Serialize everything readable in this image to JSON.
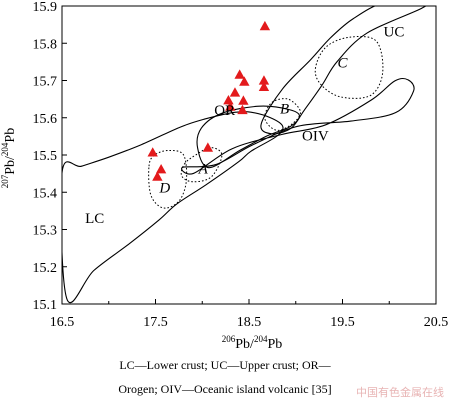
{
  "chart_data": {
    "type": "scatter",
    "xlim": [
      16.5,
      20.5
    ],
    "ylim": [
      15.1,
      15.9
    ],
    "xticks": [
      "16.5",
      "17.5",
      "18.5",
      "19.5",
      "20.5"
    ],
    "yticks": [
      "15.1",
      "15.2",
      "15.3",
      "15.4",
      "15.5",
      "15.6",
      "15.7",
      "15.8",
      "15.9"
    ],
    "xlabel": {
      "pre": "206",
      "base": "Pb/",
      "pre2": "204",
      "base2": "Pb"
    },
    "ylabel": {
      "pre": "207",
      "base": "Pb/",
      "pre2": "204",
      "base2": "Pb"
    },
    "grid": false,
    "marker_color": "#e31a1c",
    "points": [
      {
        "x": 18.67,
        "y": 15.846
      },
      {
        "x": 18.4,
        "y": 15.716
      },
      {
        "x": 18.45,
        "y": 15.697
      },
      {
        "x": 18.66,
        "y": 15.7
      },
      {
        "x": 18.66,
        "y": 15.683
      },
      {
        "x": 18.35,
        "y": 15.668
      },
      {
        "x": 18.28,
        "y": 15.647
      },
      {
        "x": 18.44,
        "y": 15.646
      },
      {
        "x": 18.3,
        "y": 15.63
      },
      {
        "x": 18.43,
        "y": 15.621
      },
      {
        "x": 18.06,
        "y": 15.52
      },
      {
        "x": 17.47,
        "y": 15.507
      },
      {
        "x": 17.56,
        "y": 15.462
      },
      {
        "x": 17.52,
        "y": 15.442
      }
    ],
    "field_labels": [
      {
        "text": "UC",
        "x": 20.05,
        "y": 15.818,
        "italic": false
      },
      {
        "text": "C",
        "x": 19.5,
        "y": 15.735,
        "italic": true
      },
      {
        "text": "OR",
        "x": 18.24,
        "y": 15.607,
        "italic": false
      },
      {
        "text": "B",
        "x": 18.88,
        "y": 15.612,
        "italic": true
      },
      {
        "text": "OIV",
        "x": 19.21,
        "y": 15.539,
        "italic": false
      },
      {
        "text": "A",
        "x": 18.01,
        "y": 15.45,
        "italic": true
      },
      {
        "text": "D",
        "x": 17.6,
        "y": 15.4,
        "italic": true
      },
      {
        "text": "LC",
        "x": 16.85,
        "y": 15.317,
        "italic": false
      }
    ],
    "fields": {
      "LC": [
        [
          16.5,
          15.452
        ],
        [
          16.71,
          15.47
        ],
        [
          17.0,
          15.494
        ],
        [
          17.35,
          15.528
        ],
        [
          17.7,
          15.568
        ],
        [
          17.85,
          15.583
        ],
        [
          18.02,
          15.596
        ],
        [
          18.21,
          15.608
        ],
        [
          18.36,
          15.615
        ],
        [
          18.52,
          15.615
        ],
        [
          18.73,
          15.6
        ],
        [
          18.86,
          15.577
        ],
        [
          18.8,
          15.551
        ],
        [
          18.52,
          15.51
        ],
        [
          18.39,
          15.482
        ],
        [
          18.04,
          15.42
        ],
        [
          17.73,
          15.369
        ],
        [
          17.54,
          15.326
        ],
        [
          17.21,
          15.26
        ],
        [
          16.84,
          15.19
        ],
        [
          16.55,
          15.115
        ]
      ],
      "UC": [
        [
          18.63,
          15.583
        ],
        [
          18.86,
          15.678
        ],
        [
          19.16,
          15.756
        ],
        [
          19.37,
          15.814
        ],
        [
          19.61,
          15.865
        ],
        [
          19.95,
          15.909
        ],
        [
          20.34,
          15.904
        ],
        [
          20.34,
          15.893
        ],
        [
          19.76,
          15.827
        ],
        [
          19.44,
          15.75
        ],
        [
          19.28,
          15.687
        ],
        [
          19.09,
          15.62
        ],
        [
          18.95,
          15.572
        ],
        [
          18.74,
          15.557
        ]
      ],
      "OR": [
        [
          18.07,
          15.466
        ],
        [
          18.4,
          15.512
        ],
        [
          18.69,
          15.551
        ],
        [
          18.94,
          15.576
        ],
        [
          19.04,
          15.605
        ],
        [
          18.93,
          15.622
        ],
        [
          18.61,
          15.631
        ],
        [
          18.21,
          15.612
        ],
        [
          17.99,
          15.572
        ],
        [
          17.95,
          15.519
        ]
      ],
      "OIV": [
        [
          17.91,
          15.451
        ],
        [
          18.32,
          15.517
        ],
        [
          18.85,
          15.555
        ],
        [
          19.32,
          15.581
        ],
        [
          19.81,
          15.648
        ],
        [
          20.06,
          15.699
        ],
        [
          20.2,
          15.702
        ],
        [
          20.26,
          15.672
        ],
        [
          20.07,
          15.614
        ],
        [
          19.59,
          15.591
        ],
        [
          19.02,
          15.577
        ],
        [
          18.54,
          15.527
        ],
        [
          18.14,
          15.474
        ],
        [
          17.79,
          15.467
        ]
      ],
      "A": [
        [
          17.81,
          15.476
        ],
        [
          17.93,
          15.5
        ],
        [
          18.09,
          15.52
        ],
        [
          18.21,
          15.5
        ],
        [
          18.1,
          15.442
        ],
        [
          17.9,
          15.428
        ],
        [
          17.78,
          15.444
        ]
      ],
      "B": [
        [
          18.67,
          15.608
        ],
        [
          18.75,
          15.642
        ],
        [
          18.92,
          15.65
        ],
        [
          19.05,
          15.617
        ],
        [
          18.97,
          15.585
        ],
        [
          18.81,
          15.566
        ],
        [
          18.7,
          15.583
        ]
      ],
      "C": [
        [
          19.21,
          15.732
        ],
        [
          19.32,
          15.789
        ],
        [
          19.57,
          15.816
        ],
        [
          19.86,
          15.806
        ],
        [
          19.93,
          15.722
        ],
        [
          19.8,
          15.66
        ],
        [
          19.48,
          15.656
        ],
        [
          19.27,
          15.689
        ]
      ],
      "D": [
        [
          17.43,
          15.47
        ],
        [
          17.49,
          15.5
        ],
        [
          17.64,
          15.512
        ],
        [
          17.8,
          15.5
        ],
        [
          17.83,
          15.431
        ],
        [
          17.75,
          15.376
        ],
        [
          17.58,
          15.358
        ],
        [
          17.45,
          15.393
        ]
      ]
    }
  },
  "caption": {
    "line1": "LC—Lower crust; UC—Upper crust; OR—",
    "line2": "Orogen; OIV—Oceanic island volcanic [35]"
  },
  "watermark": "中国有色金属在线"
}
